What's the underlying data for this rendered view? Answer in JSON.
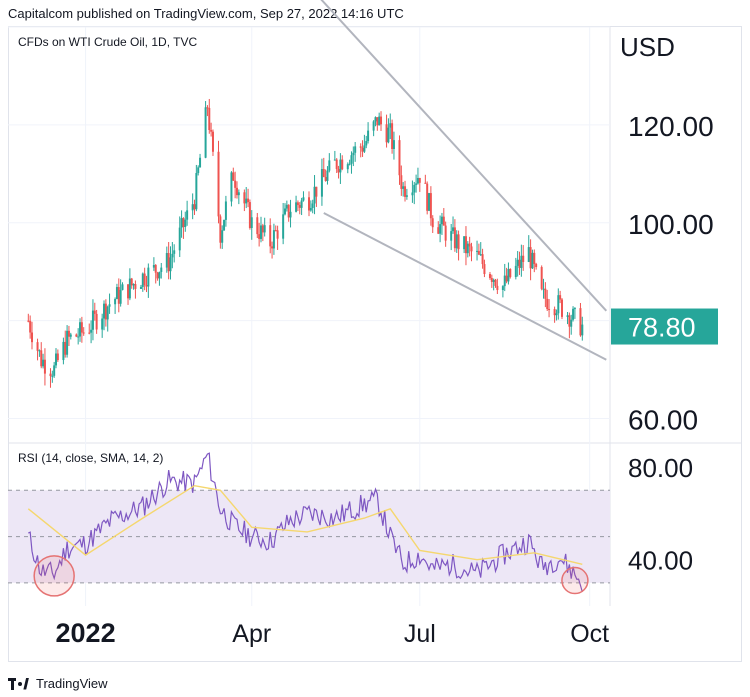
{
  "header": {
    "published_by": "Capitalcom published on TradingView.com, Sep 27, 2022 14:16 UTC"
  },
  "main_pane": {
    "symbol_label": "CFDs on WTI Crude Oil, 1D, TVC",
    "currency": "USD"
  },
  "rsi_pane": {
    "label": "RSI (14, close, SMA, 14, 2)"
  },
  "footer": {
    "brand": "TradingView"
  },
  "colors": {
    "up": "#26a69a",
    "down": "#ef5350",
    "rsi_line": "#7e57c2",
    "rsi_sma": "#f5d76e",
    "rsi_band": "#ede7f6",
    "trendline": "#b2b5be",
    "last_price_bg": "#26a69a",
    "circle": "#e57373"
  },
  "chart_data": [
    {
      "type": "candlestick",
      "title": "CFDs on WTI Crude Oil, 1D, TVC",
      "ylabel": "USD",
      "ylim": [
        55,
        140
      ],
      "y_ticks": [
        "120.00",
        "100.00",
        "60.00"
      ],
      "last_price": "78.80",
      "x_ticks": [
        "2022",
        "Apr",
        "Jul",
        "Oct"
      ],
      "series": [
        {
          "name": "close",
          "dates": [
            "2021-12-01",
            "2021-12-08",
            "2021-12-15",
            "2021-12-22",
            "2022-01-01",
            "2022-01-15",
            "2022-02-01",
            "2022-02-15",
            "2022-03-01",
            "2022-03-08",
            "2022-03-15",
            "2022-03-22",
            "2022-04-01",
            "2022-04-11",
            "2022-04-22",
            "2022-05-02",
            "2022-05-16",
            "2022-06-01",
            "2022-06-08",
            "2022-06-15",
            "2022-06-22",
            "2022-07-01",
            "2022-07-08",
            "2022-07-18",
            "2022-08-01",
            "2022-08-15",
            "2022-08-29",
            "2022-09-05",
            "2022-09-15",
            "2022-09-27"
          ],
          "values": [
            80,
            72,
            70,
            76,
            78,
            84,
            89,
            92,
            105,
            124,
            98,
            110,
            100,
            96,
            103,
            105,
            112,
            116,
            121,
            118,
            107,
            110,
            101,
            97,
            93,
            87,
            94,
            85,
            83,
            78.8
          ]
        }
      ],
      "trendlines": [
        {
          "from": [
            "2022-04-28",
            150
          ],
          "to": [
            "2022-10-10",
            82
          ]
        },
        {
          "from": [
            "2022-05-10",
            102
          ],
          "to": [
            "2022-10-10",
            72
          ]
        }
      ]
    },
    {
      "type": "line",
      "title": "RSI (14, close, SMA, 14, 2)",
      "ylim": [
        20,
        90
      ],
      "y_ticks": [
        "80.00",
        "40.00"
      ],
      "bands": [
        30,
        50,
        70
      ],
      "series": [
        {
          "name": "RSI",
          "dates": [
            "2021-12-01",
            "2021-12-08",
            "2021-12-15",
            "2021-12-22",
            "2022-01-01",
            "2022-01-15",
            "2022-02-01",
            "2022-02-15",
            "2022-03-01",
            "2022-03-08",
            "2022-03-15",
            "2022-03-22",
            "2022-04-01",
            "2022-04-11",
            "2022-04-22",
            "2022-05-02",
            "2022-05-16",
            "2022-06-01",
            "2022-06-08",
            "2022-06-15",
            "2022-06-22",
            "2022-07-01",
            "2022-07-08",
            "2022-07-18",
            "2022-08-01",
            "2022-08-15",
            "2022-08-29",
            "2022-09-05",
            "2022-09-15",
            "2022-09-27"
          ],
          "values": [
            50,
            35,
            34,
            45,
            47,
            57,
            63,
            74,
            73,
            85,
            62,
            55,
            50,
            48,
            57,
            60,
            58,
            64,
            66,
            50,
            38,
            42,
            36,
            38,
            34,
            42,
            48,
            37,
            41,
            30
          ]
        },
        {
          "name": "RSI-based MA",
          "dates": [
            "2021-12-01",
            "2022-01-01",
            "2022-02-01",
            "2022-03-01",
            "2022-03-15",
            "2022-04-01",
            "2022-05-01",
            "2022-06-01",
            "2022-06-15",
            "2022-07-01",
            "2022-08-01",
            "2022-09-01",
            "2022-09-27"
          ],
          "values": [
            62,
            42,
            58,
            72,
            70,
            54,
            52,
            58,
            62,
            44,
            40,
            43,
            38
          ]
        }
      ],
      "annotations": [
        {
          "date": "2021-12-15",
          "value": 33
        },
        {
          "date": "2022-09-23",
          "value": 31
        }
      ]
    }
  ]
}
